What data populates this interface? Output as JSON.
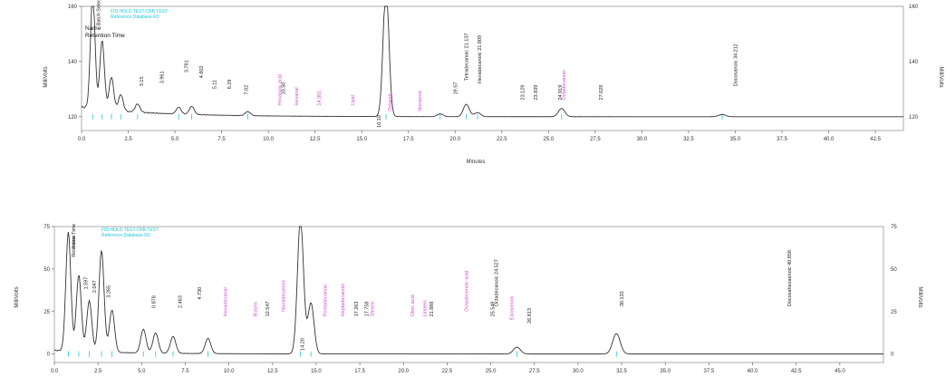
{
  "chart_data": [
    {
      "type": "line",
      "ylabel": "MilliVolts",
      "xlabel": "Minutes",
      "xlim": [
        0,
        44
      ],
      "ylim": [
        115,
        160
      ],
      "x_ticks": [
        "0.0",
        "2.5",
        "5.0",
        "7.5",
        "10.0",
        "12.5",
        "15.0",
        "17.5",
        "20.0",
        "22.5",
        "25.0",
        "27.5",
        "30.0",
        "32.5",
        "35.0",
        "37.5",
        "40.0",
        "42.5"
      ],
      "y_ticks": [
        "120",
        "140",
        "160"
      ],
      "legend_cyan": [
        "FID.HOLD.TEST.CRB.TEST",
        "Reference.Database.R3"
      ],
      "legend_black": [
        "Name",
        "Retention Time"
      ],
      "color_line": "#333333",
      "color_cyan": "#1fc6d8",
      "color_magenta": "#d24fd4",
      "peaks": [
        {
          "x": 0.6,
          "h": 42
        },
        {
          "x": 1.1,
          "h": 25
        },
        {
          "x": 1.6,
          "h": 12
        },
        {
          "x": 2.1,
          "h": 6
        },
        {
          "x": 3.0,
          "h": 3
        },
        {
          "x": 5.2,
          "h": 2.5
        },
        {
          "x": 5.9,
          "h": 3
        },
        {
          "x": 8.9,
          "h": 1.5
        },
        {
          "x": 16.3,
          "h": 48
        },
        {
          "x": 19.2,
          "h": 1
        },
        {
          "x": 20.6,
          "h": 4.5
        },
        {
          "x": 21.2,
          "h": 1.5
        },
        {
          "x": 25.7,
          "h": 3
        },
        {
          "x": 34.3,
          "h": 0.8
        }
      ],
      "annotations_black": [
        {
          "x": 1.0,
          "y": 153,
          "text": "Batch Selection Time"
        },
        {
          "x": 3.3,
          "y": 131,
          "text": "3.15"
        },
        {
          "x": 4.4,
          "y": 132,
          "text": "3.961"
        },
        {
          "x": 5.7,
          "y": 136,
          "text": "3.781"
        },
        {
          "x": 6.5,
          "y": 134,
          "text": "4.602"
        },
        {
          "x": 7.2,
          "y": 130,
          "text": "5.11"
        },
        {
          "x": 8.0,
          "y": 130,
          "text": "6.29"
        },
        {
          "x": 8.9,
          "y": 128,
          "text": "7.02"
        },
        {
          "x": 10.9,
          "y": 128,
          "text": "10.50"
        },
        {
          "x": 20.1,
          "y": 128,
          "text": "19.57"
        },
        {
          "x": 20.7,
          "y": 133,
          "text": "Tetradecanoic 21.137"
        },
        {
          "x": 21.4,
          "y": 132,
          "text": "Hexadecanoic 21.809"
        },
        {
          "x": 23.7,
          "y": 126,
          "text": "23.129"
        },
        {
          "x": 24.4,
          "y": 126,
          "text": "23.839"
        },
        {
          "x": 25.7,
          "y": 126,
          "text": "24.919"
        },
        {
          "x": 27.9,
          "y": 126,
          "text": "27.029"
        },
        {
          "x": 35.1,
          "y": 131,
          "text": "Docosanoic 34.212"
        },
        {
          "x": 16.0,
          "y": 116,
          "text": "16.10"
        }
      ],
      "annotations_magenta": [
        {
          "x": 10.7,
          "y": 124,
          "text": "Hexanoic acid"
        },
        {
          "x": 11.6,
          "y": 124,
          "text": "Hexanal"
        },
        {
          "x": 12.8,
          "y": 124,
          "text": "14.301"
        },
        {
          "x": 14.6,
          "y": 124,
          "text": "Lipid"
        },
        {
          "x": 16.6,
          "y": 122,
          "text": "Octanal"
        },
        {
          "x": 18.2,
          "y": 122,
          "text": "Nonanoic"
        },
        {
          "x": 25.9,
          "y": 126,
          "text": "Octadecanoic"
        }
      ]
    },
    {
      "type": "line",
      "ylabel": "MilliVolts",
      "xlim": [
        0,
        47.5
      ],
      "ylim": [
        -5,
        75
      ],
      "x_ticks": [
        "0.0",
        "2.5",
        "5.0",
        "7.5",
        "10.0",
        "12.5",
        "15.0",
        "17.5",
        "20.0",
        "22.5",
        "25.0",
        "27.5",
        "30.0",
        "32.5",
        "35.0",
        "37.5",
        "40.0",
        "42.5",
        "45.0"
      ],
      "y_ticks": [
        "0",
        "25",
        "50",
        "75"
      ],
      "legend_cyan": [
        "FID.HOLD.TEST.CRB.TEST",
        "Reference.Database.R3"
      ],
      "legend_black": [
        "Name",
        "Retention Time"
      ],
      "color_line": "#333333",
      "color_cyan": "#1fc6d8",
      "color_magenta": "#d24fd4",
      "peaks": [
        {
          "x": 0.8,
          "h": 70
        },
        {
          "x": 1.4,
          "h": 45
        },
        {
          "x": 2.0,
          "h": 30
        },
        {
          "x": 2.7,
          "h": 60
        },
        {
          "x": 3.3,
          "h": 25
        },
        {
          "x": 5.1,
          "h": 14
        },
        {
          "x": 5.8,
          "h": 12
        },
        {
          "x": 6.8,
          "h": 10
        },
        {
          "x": 8.8,
          "h": 9
        },
        {
          "x": 14.1,
          "h": 80
        },
        {
          "x": 14.7,
          "h": 30
        },
        {
          "x": 26.5,
          "h": 4
        },
        {
          "x": 32.2,
          "h": 12
        }
      ],
      "annotations_black": [
        {
          "x": 1.2,
          "y": 62,
          "text": "Name"
        },
        {
          "x": 1.2,
          "y": 57,
          "text": "Retention Time"
        },
        {
          "x": 1.9,
          "y": 38,
          "text": "1.597"
        },
        {
          "x": 2.4,
          "y": 36,
          "text": "2.047"
        },
        {
          "x": 3.2,
          "y": 33,
          "text": "3.265"
        },
        {
          "x": 5.8,
          "y": 27,
          "text": "0.878"
        },
        {
          "x": 7.3,
          "y": 27,
          "text": "2.463"
        },
        {
          "x": 8.4,
          "y": 32,
          "text": "4.730"
        },
        {
          "x": 12.3,
          "y": 22,
          "text": "12.547"
        },
        {
          "x": 17.4,
          "y": 22,
          "text": "17.263"
        },
        {
          "x": 18.0,
          "y": 22,
          "text": "17.758"
        },
        {
          "x": 21.7,
          "y": 22,
          "text": "21.888"
        },
        {
          "x": 25.2,
          "y": 22,
          "text": "25.549"
        },
        {
          "x": 25.4,
          "y": 28,
          "text": "Octadecanoic 24.527"
        },
        {
          "x": 27.3,
          "y": 18,
          "text": "26.813"
        },
        {
          "x": 32.6,
          "y": 28,
          "text": "30.133"
        },
        {
          "x": 42.2,
          "y": 28,
          "text": "Docosahexaenoic 40.858"
        },
        {
          "x": 14.3,
          "y": 2,
          "text": "14.20"
        }
      ],
      "annotations_magenta": [
        {
          "x": 9.9,
          "y": 22,
          "text": "Hexadecanal"
        },
        {
          "x": 11.6,
          "y": 22,
          "text": "Butyric"
        },
        {
          "x": 13.2,
          "y": 25,
          "text": "Nonadecanoic"
        },
        {
          "x": 15.6,
          "y": 22,
          "text": "Pentadecanoic"
        },
        {
          "x": 16.6,
          "y": 22,
          "text": "Heptadecanoic"
        },
        {
          "x": 18.3,
          "y": 22,
          "text": "Stearic"
        },
        {
          "x": 20.6,
          "y": 22,
          "text": "Oleic acid"
        },
        {
          "x": 21.3,
          "y": 22,
          "text": "Linoleic"
        },
        {
          "x": 23.7,
          "y": 25,
          "text": "Octadecenoic acid"
        },
        {
          "x": 26.3,
          "y": 20,
          "text": "Eicosenoic"
        }
      ]
    }
  ]
}
